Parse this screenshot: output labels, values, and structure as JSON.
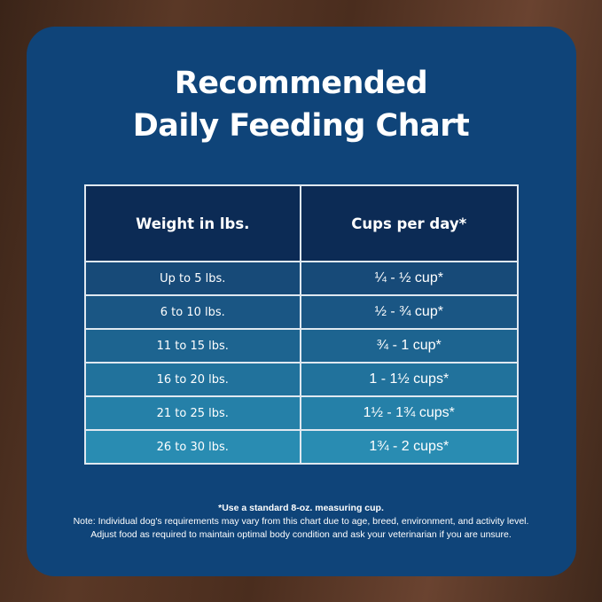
{
  "title": {
    "line1": "Recommended",
    "line2": "Daily Feeding Chart"
  },
  "table": {
    "headers": [
      "Weight in lbs.",
      "Cups per day*"
    ],
    "rows": [
      {
        "weight": "Up to 5 lbs.",
        "cups": "¼ - ½ cup*",
        "color": "#174a78"
      },
      {
        "weight": "6 to 10 lbs.",
        "cups": "½ - ¾ cup*",
        "color": "#1a5684"
      },
      {
        "weight": "11 to 15 lbs.",
        "cups": "¾ - 1 cup*",
        "color": "#1d6490"
      },
      {
        "weight": "16 to 20 lbs.",
        "cups": "1 - 1½ cups*",
        "color": "#21729c"
      },
      {
        "weight": "21 to 25 lbs.",
        "cups": "1½ - 1¾ cups*",
        "color": "#2580a8"
      },
      {
        "weight": "26 to 30 lbs.",
        "cups": "1¾ - 2 cups*",
        "color": "#298cb2"
      }
    ]
  },
  "notes": {
    "footnote": "*Use a standard 8-oz. measuring cup.",
    "line1": "Note: Individual dog's requirements may vary from this chart due to age, breed, environment, and activity level.",
    "line2": "Adjust food as required to maintain optimal body condition and ask your veterinarian if you are unsure."
  }
}
